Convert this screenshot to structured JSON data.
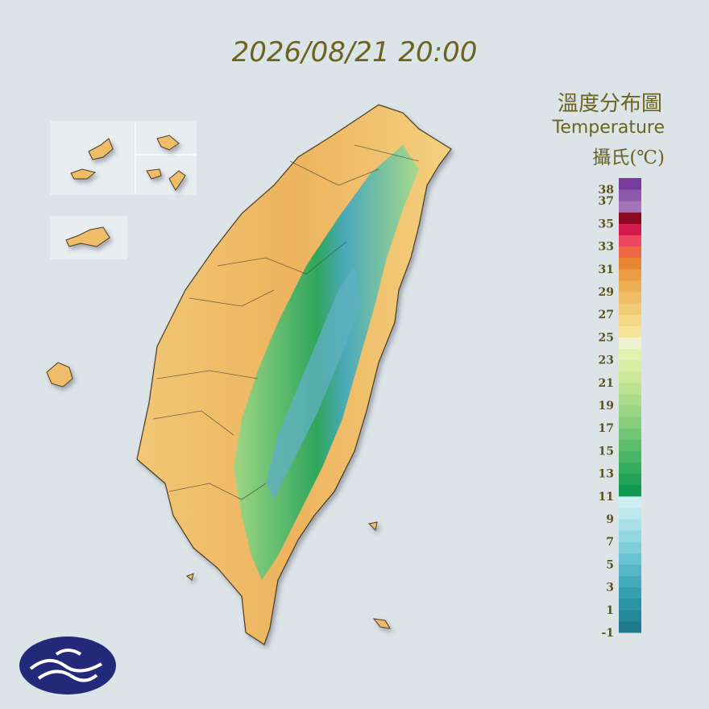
{
  "timestamp": "2026/08/21 20:00",
  "legend": {
    "title": "溫度分布圖",
    "subtitle": "Temperature",
    "unit": "攝氏(℃)",
    "range": [
      -1,
      39
    ],
    "ticks": [
      38,
      37,
      35,
      33,
      31,
      29,
      27,
      25,
      23,
      21,
      19,
      17,
      15,
      13,
      11,
      9,
      7,
      5,
      3,
      1,
      -1
    ],
    "colors": [
      "#1f7b8c",
      "#25879a",
      "#2c93a6",
      "#369fb1",
      "#44abbc",
      "#55b7c6",
      "#69c3d0",
      "#7fcdd9",
      "#95d7e1",
      "#a9e0e8",
      "#bce8ee",
      "#cdeff3",
      "#0f9a4f",
      "#22a356",
      "#36ac5e",
      "#4ab566",
      "#5ebd6d",
      "#72c574",
      "#86cd7c",
      "#99d583",
      "#acdc8b",
      "#bde392",
      "#cce99a",
      "#d9eea4",
      "#e3f1b0",
      "#eef2cf",
      "#f5e49a",
      "#f4d888",
      "#f2cb76",
      "#f0bd66",
      "#eeae56",
      "#ec9c44",
      "#e98632",
      "#ee6846",
      "#ef4560",
      "#d41a4e",
      "#8a0a22",
      "#a474b8",
      "#8e58ac",
      "#7a3b9e"
    ]
  }
}
